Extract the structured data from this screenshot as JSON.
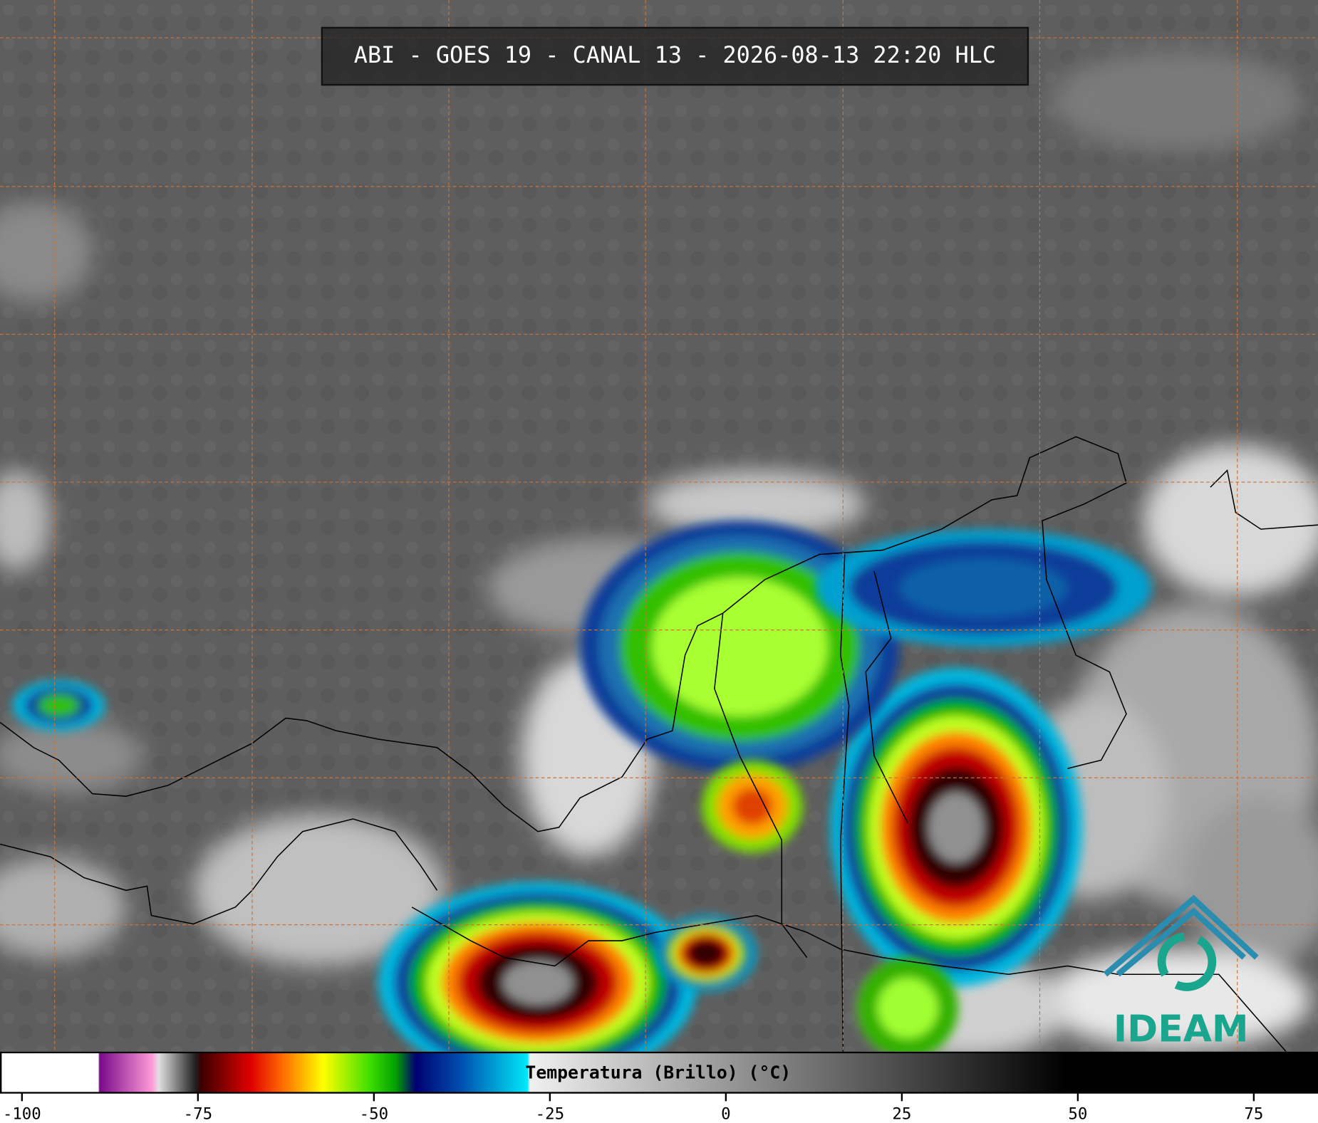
{
  "title": "ABI - GOES 19 - CANAL 13 - 2026-08-13 22:20 HLC",
  "colorbar": {
    "label": "Temperatura (Brillo) (°C)",
    "range": [
      -103,
      84
    ],
    "ticks": [
      -100,
      -75,
      -50,
      -25,
      0,
      25,
      50,
      75
    ]
  },
  "logo": "IDEAM"
}
